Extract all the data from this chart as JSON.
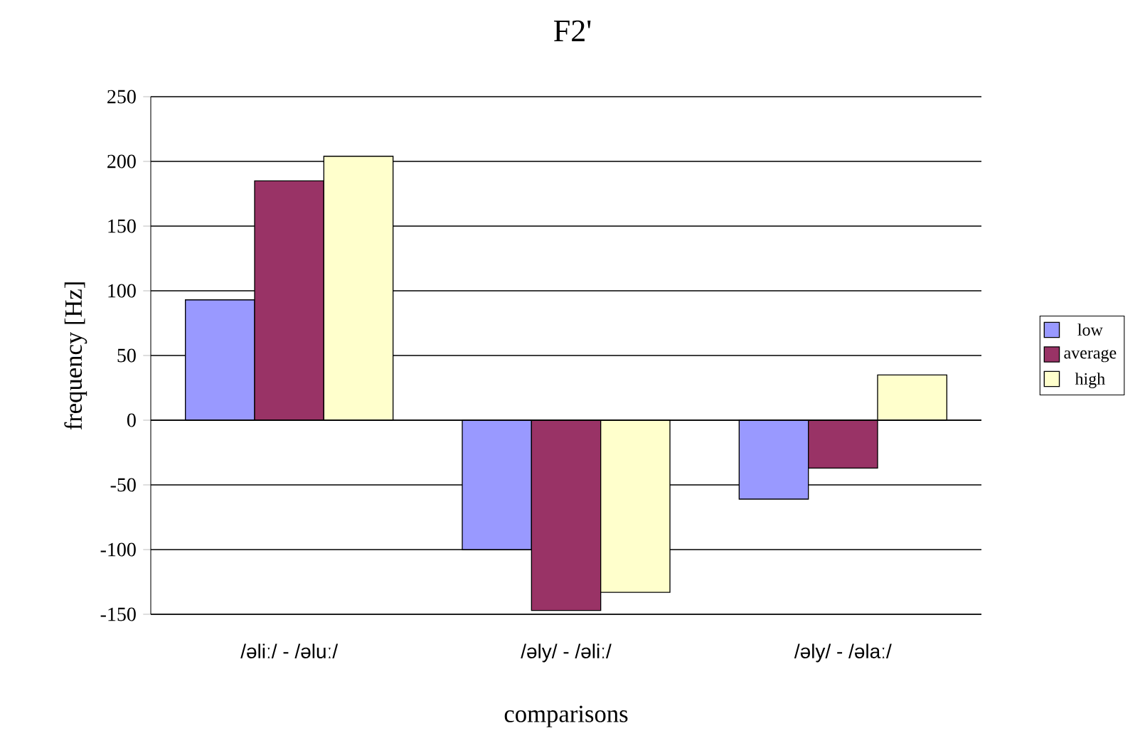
{
  "chart_data": {
    "type": "bar",
    "title": "F2'",
    "xlabel": "comparisons",
    "ylabel": "frequency [Hz]",
    "categories": [
      "/əliː/ - /əluː/",
      "/əly/ - /əliː/",
      "/əly/ - /əlaː/"
    ],
    "series": [
      {
        "name": "low",
        "color": "#9999ff",
        "values": [
          93,
          -100,
          -61
        ]
      },
      {
        "name": "average",
        "color": "#993366",
        "values": [
          185,
          -147,
          -37
        ]
      },
      {
        "name": "high",
        "color": "#ffffcc",
        "values": [
          204,
          -133,
          35
        ]
      }
    ],
    "ylim": [
      -150,
      250
    ],
    "yticks": [
      -150,
      -100,
      -50,
      0,
      50,
      100,
      150,
      200,
      250
    ],
    "grid": "y",
    "legend": "right"
  }
}
